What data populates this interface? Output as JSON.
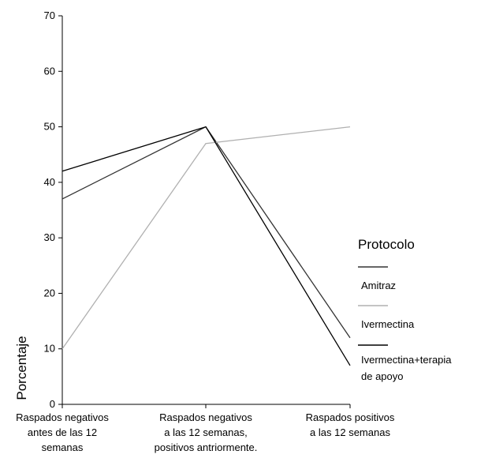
{
  "chart_data": {
    "type": "line",
    "title": "",
    "xlabel": "",
    "ylabel": "Porcentaje",
    "ylim": [
      0,
      70
    ],
    "yticks": [
      0,
      10,
      20,
      30,
      40,
      50,
      60,
      70
    ],
    "grid": false,
    "legend_position": "right",
    "legend_title": "Protocolo",
    "categories": [
      [
        "Raspados negativos",
        "antes de las 12",
        "semanas"
      ],
      [
        "Raspados negativos",
        "a las 12 semanas,",
        "positivos antriormente."
      ],
      [
        "Raspados positivos",
        "a las 12 semanas"
      ]
    ],
    "series": [
      {
        "name": "Amitraz",
        "color": "#333333",
        "values": [
          37,
          50,
          12
        ]
      },
      {
        "name": "Ivermectina",
        "color": "#b0b0b0",
        "values": [
          10,
          47,
          50
        ]
      },
      {
        "name": "Ivermectina+terapia de apoyo",
        "name_lines": [
          "Ivermectina+terapia",
          "de apoyo"
        ],
        "color": "#000000",
        "values": [
          42,
          50,
          7
        ]
      }
    ]
  }
}
